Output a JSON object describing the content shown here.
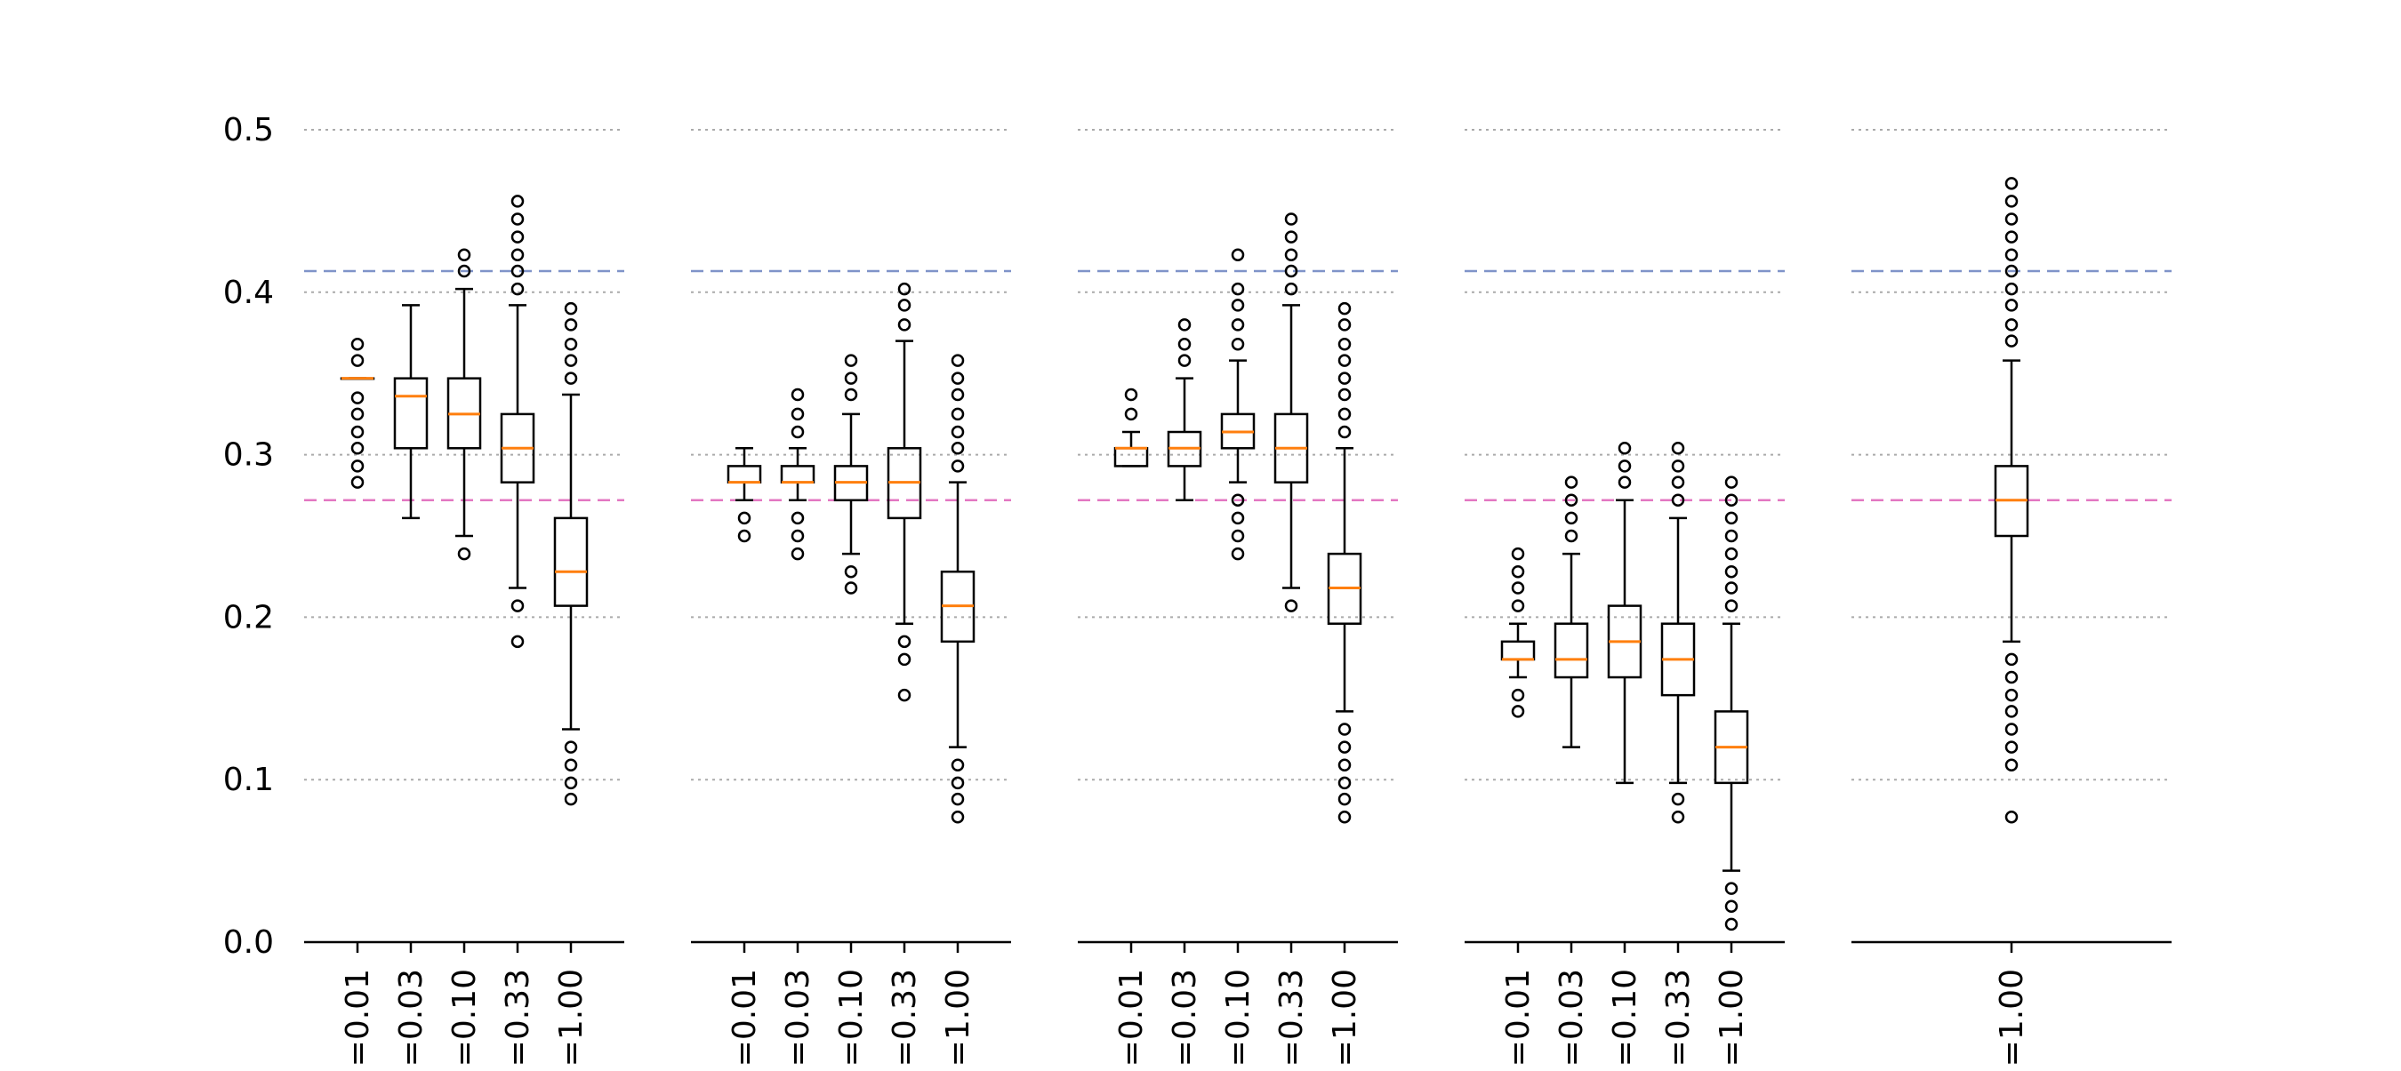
{
  "chart_data": {
    "type": "box",
    "ylim": [
      0.0,
      0.5
    ],
    "y_ticks": [
      "0.0",
      "0.1",
      "0.2",
      "0.3",
      "0.4",
      "0.5"
    ],
    "y_tick_values": [
      0.0,
      0.1,
      0.2,
      0.3,
      0.4,
      0.5
    ],
    "grid": "horizontal dotted",
    "reference_lines": [
      {
        "value": 0.413,
        "color": "#7f93c9",
        "style": "dashed"
      },
      {
        "value": 0.272,
        "color": "#e377c2",
        "style": "dashed"
      }
    ],
    "colors": {
      "box": "#000000",
      "median": "#ff7f0e",
      "grid": "#aaaaaa"
    },
    "panels": [
      {
        "categories": [
          "=0.01",
          "=0.03",
          "=0.10",
          "=0.33",
          "=1.00"
        ],
        "boxes": [
          {
            "q1": 0.347,
            "median": 0.347,
            "q3": 0.347,
            "whisker_low": 0.347,
            "whisker_high": 0.347,
            "outliers": [
              0.283,
              0.293,
              0.304,
              0.314,
              0.325,
              0.335,
              0.358,
              0.368
            ]
          },
          {
            "q1": 0.304,
            "median": 0.336,
            "q3": 0.347,
            "whisker_low": 0.261,
            "whisker_high": 0.392,
            "outliers": []
          },
          {
            "q1": 0.304,
            "median": 0.325,
            "q3": 0.347,
            "whisker_low": 0.25,
            "whisker_high": 0.402,
            "outliers": [
              0.239,
              0.413,
              0.423
            ]
          },
          {
            "q1": 0.283,
            "median": 0.304,
            "q3": 0.325,
            "whisker_low": 0.218,
            "whisker_high": 0.392,
            "outliers": [
              0.185,
              0.207,
              0.402,
              0.413,
              0.423,
              0.434,
              0.445,
              0.456
            ]
          },
          {
            "q1": 0.207,
            "median": 0.228,
            "q3": 0.261,
            "whisker_low": 0.131,
            "whisker_high": 0.337,
            "outliers": [
              0.088,
              0.098,
              0.109,
              0.12,
              0.347,
              0.358,
              0.368,
              0.38,
              0.39
            ]
          }
        ]
      },
      {
        "categories": [
          "=0.01",
          "=0.03",
          "=0.10",
          "=0.33",
          "=1.00"
        ],
        "boxes": [
          {
            "q1": 0.283,
            "median": 0.283,
            "q3": 0.293,
            "whisker_low": 0.272,
            "whisker_high": 0.304,
            "outliers": [
              0.25,
              0.261
            ]
          },
          {
            "q1": 0.283,
            "median": 0.283,
            "q3": 0.293,
            "whisker_low": 0.272,
            "whisker_high": 0.304,
            "outliers": [
              0.239,
              0.25,
              0.261,
              0.314,
              0.325,
              0.337
            ]
          },
          {
            "q1": 0.272,
            "median": 0.283,
            "q3": 0.293,
            "whisker_low": 0.239,
            "whisker_high": 0.325,
            "outliers": [
              0.218,
              0.228,
              0.337,
              0.347,
              0.358
            ]
          },
          {
            "q1": 0.261,
            "median": 0.283,
            "q3": 0.304,
            "whisker_low": 0.196,
            "whisker_high": 0.37,
            "outliers": [
              0.152,
              0.174,
              0.185,
              0.38,
              0.392,
              0.402
            ]
          },
          {
            "q1": 0.185,
            "median": 0.207,
            "q3": 0.228,
            "whisker_low": 0.12,
            "whisker_high": 0.283,
            "outliers": [
              0.077,
              0.088,
              0.098,
              0.109,
              0.293,
              0.304,
              0.314,
              0.325,
              0.337,
              0.347,
              0.358
            ]
          }
        ]
      },
      {
        "categories": [
          "=0.01",
          "=0.03",
          "=0.10",
          "=0.33",
          "=1.00"
        ],
        "boxes": [
          {
            "q1": 0.293,
            "median": 0.304,
            "q3": 0.304,
            "whisker_low": 0.293,
            "whisker_high": 0.314,
            "outliers": [
              0.325,
              0.337
            ]
          },
          {
            "q1": 0.293,
            "median": 0.304,
            "q3": 0.314,
            "whisker_low": 0.272,
            "whisker_high": 0.347,
            "outliers": [
              0.358,
              0.368,
              0.38
            ]
          },
          {
            "q1": 0.304,
            "median": 0.314,
            "q3": 0.325,
            "whisker_low": 0.283,
            "whisker_high": 0.358,
            "outliers": [
              0.239,
              0.25,
              0.261,
              0.272,
              0.368,
              0.38,
              0.392,
              0.402,
              0.423
            ]
          },
          {
            "q1": 0.283,
            "median": 0.304,
            "q3": 0.325,
            "whisker_low": 0.218,
            "whisker_high": 0.392,
            "outliers": [
              0.207,
              0.402,
              0.413,
              0.423,
              0.434,
              0.445
            ]
          },
          {
            "q1": 0.196,
            "median": 0.218,
            "q3": 0.239,
            "whisker_low": 0.142,
            "whisker_high": 0.304,
            "outliers": [
              0.077,
              0.088,
              0.098,
              0.109,
              0.12,
              0.131,
              0.314,
              0.325,
              0.337,
              0.347,
              0.358,
              0.368,
              0.38,
              0.39
            ]
          }
        ]
      },
      {
        "categories": [
          "=0.01",
          "=0.03",
          "=0.10",
          "=0.33",
          "=1.00"
        ],
        "boxes": [
          {
            "q1": 0.174,
            "median": 0.174,
            "q3": 0.185,
            "whisker_low": 0.163,
            "whisker_high": 0.196,
            "outliers": [
              0.142,
              0.152,
              0.207,
              0.218,
              0.228,
              0.239
            ]
          },
          {
            "q1": 0.163,
            "median": 0.174,
            "q3": 0.196,
            "whisker_low": 0.12,
            "whisker_high": 0.239,
            "outliers": [
              0.25,
              0.261,
              0.272,
              0.283
            ]
          },
          {
            "q1": 0.163,
            "median": 0.185,
            "q3": 0.207,
            "whisker_low": 0.098,
            "whisker_high": 0.272,
            "outliers": [
              0.283,
              0.293,
              0.304
            ]
          },
          {
            "q1": 0.152,
            "median": 0.174,
            "q3": 0.196,
            "whisker_low": 0.098,
            "whisker_high": 0.261,
            "outliers": [
              0.077,
              0.088,
              0.272,
              0.283,
              0.293,
              0.304
            ]
          },
          {
            "q1": 0.098,
            "median": 0.12,
            "q3": 0.142,
            "whisker_low": 0.044,
            "whisker_high": 0.196,
            "outliers": [
              0.011,
              0.022,
              0.033,
              0.207,
              0.218,
              0.228,
              0.239,
              0.25,
              0.261,
              0.272,
              0.283
            ]
          }
        ]
      },
      {
        "categories": [
          "=1.00"
        ],
        "boxes": [
          {
            "q1": 0.25,
            "median": 0.272,
            "q3": 0.293,
            "whisker_low": 0.185,
            "whisker_high": 0.358,
            "outliers": [
              0.077,
              0.109,
              0.12,
              0.131,
              0.142,
              0.152,
              0.163,
              0.174,
              0.37,
              0.38,
              0.392,
              0.402,
              0.413,
              0.423,
              0.434,
              0.445,
              0.456,
              0.467
            ]
          }
        ]
      }
    ]
  }
}
